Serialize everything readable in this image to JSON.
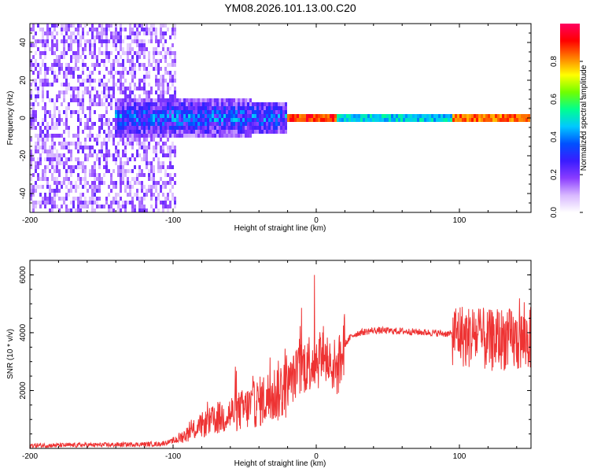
{
  "title": "YM08.2026.101.13.00.C20",
  "chart_data": [
    {
      "type": "heatmap",
      "name": "spectrogram",
      "xlabel": "Height of straight line (km)",
      "ylabel": "Frequency (Hz)",
      "xlim": [
        -200,
        150
      ],
      "ylim": [
        -50,
        50
      ],
      "x_ticks": [
        -200,
        -100,
        0,
        100
      ],
      "x_tick_labels": [
        "-200",
        "-100",
        "0",
        "100"
      ],
      "y_ticks": [
        -40,
        -20,
        0,
        20,
        40
      ],
      "y_tick_labels": [
        "-40",
        "-20",
        "0",
        "20",
        "40"
      ],
      "colorbar": {
        "label": "Normalized spectral amplitude",
        "range": [
          0,
          1
        ],
        "ticks": [
          0.0,
          0.2,
          0.4,
          0.6,
          0.8
        ],
        "tick_labels": [
          "0.0",
          "0.2",
          "0.4",
          "0.6",
          "0.8"
        ],
        "colors": [
          "#ffffff",
          "#d8b8ff",
          "#8a3cff",
          "#3a1cff",
          "#0050ff",
          "#00c8ff",
          "#00ff90",
          "#70ff00",
          "#ffff00",
          "#ff8000",
          "#ff0000",
          "#ff0060"
        ]
      },
      "features": [
        {
          "region": "broadband noise",
          "x_range": [
            -200,
            -98
          ],
          "freq_range": [
            -50,
            50
          ],
          "amplitude": 0.15
        },
        {
          "region": "onset band",
          "x_range": [
            -140,
            -20
          ],
          "freq_range": [
            -8,
            8
          ],
          "amplitude": 0.4
        },
        {
          "region": "narrow band",
          "x_range": [
            -20,
            150
          ],
          "freq_range": [
            -2,
            2
          ],
          "amplitude": 0.55
        },
        {
          "region": "peak",
          "x_range": [
            -20,
            15
          ],
          "freq_range": [
            -1,
            1
          ],
          "amplitude": 0.95
        },
        {
          "region": "peak",
          "x_range": [
            95,
            150
          ],
          "freq_range": [
            -1,
            1
          ],
          "amplitude": 0.9
        }
      ]
    },
    {
      "type": "line",
      "name": "snr",
      "xlabel": "Height of straight line (km)",
      "ylabel": "SNR (10 * v/v)",
      "xlim": [
        -200,
        150
      ],
      "ylim": [
        0,
        6500
      ],
      "x_ticks": [
        -200,
        -100,
        0,
        100
      ],
      "x_tick_labels": [
        "-200",
        "-100",
        "0",
        "100"
      ],
      "y_ticks": [
        2000,
        4000,
        6000
      ],
      "y_tick_labels": [
        "2000",
        "4000",
        "6000"
      ],
      "color": "#ee3333",
      "series": [
        {
          "name": "SNR",
          "x": [
            -200,
            -150,
            -110,
            -100,
            -90,
            -80,
            -60,
            -50,
            -40,
            -30,
            -20,
            -15,
            -10,
            -5,
            0,
            5,
            10,
            15,
            20,
            25,
            30,
            40,
            60,
            80,
            95,
            100,
            105,
            110,
            115,
            120,
            130,
            140,
            150
          ],
          "values": [
            100,
            120,
            150,
            250,
            500,
            800,
            1200,
            1350,
            1600,
            1850,
            2200,
            2500,
            2800,
            3000,
            3100,
            3200,
            3000,
            2700,
            3600,
            3900,
            4000,
            4080,
            4050,
            4000,
            3950,
            4000,
            3800,
            3950,
            3800,
            3700,
            3800,
            3700,
            3800
          ]
        }
      ]
    }
  ]
}
